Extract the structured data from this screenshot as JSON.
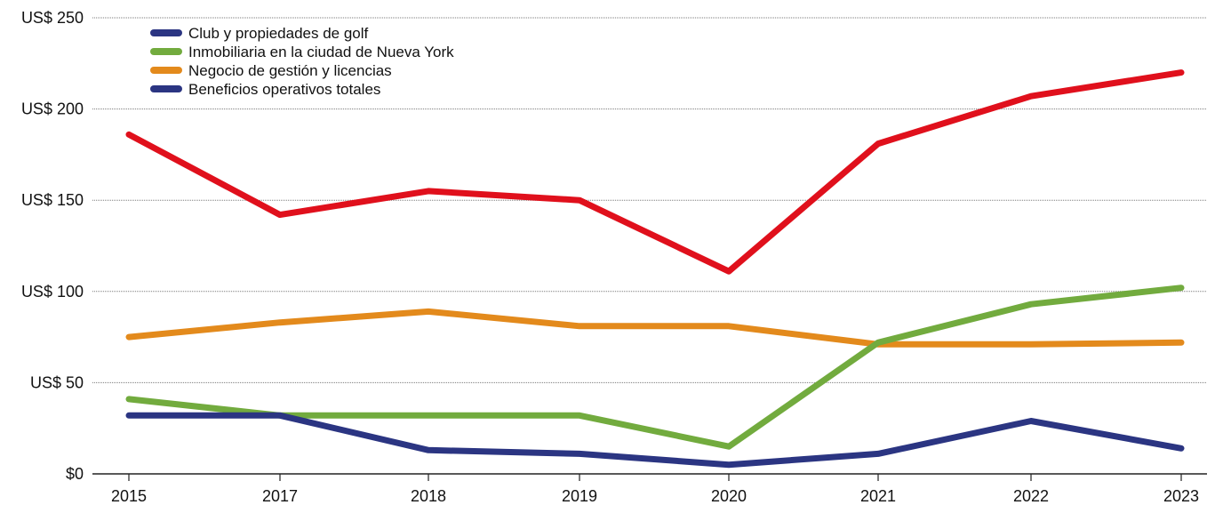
{
  "chart_data": {
    "type": "line",
    "title": "",
    "xlabel": "",
    "ylabel": "",
    "categories": [
      "2015",
      "2017",
      "2018",
      "2019",
      "2020",
      "2021",
      "2022",
      "2023"
    ],
    "y_tick_labels": [
      "$0",
      "US$ 50",
      "US$ 100",
      "US$ 150",
      "US$ 200",
      "US$ 250"
    ],
    "y_tick_values": [
      0,
      50,
      100,
      150,
      200,
      250
    ],
    "ylim": [
      0,
      250
    ],
    "grid": true,
    "legend_position": "top-left",
    "legend": [
      {
        "label": "Club y propiedades de golf",
        "color": "#2b3582"
      },
      {
        "label": "Inmobiliaria en la ciudad de Nueva York",
        "color": "#72ab3e"
      },
      {
        "label": "Negocio de gestión y licencias",
        "color": "#e38a1c"
      },
      {
        "label": "Beneficios operativos totales",
        "color": "#2b3582"
      }
    ],
    "series": [
      {
        "color": "#e0101c",
        "values": [
          186,
          142,
          155,
          150,
          111,
          181,
          207,
          220
        ]
      },
      {
        "color": "#e38a1c",
        "values": [
          75,
          83,
          89,
          81,
          81,
          71,
          71,
          72
        ]
      },
      {
        "color": "#72ab3e",
        "values": [
          41,
          32,
          32,
          32,
          15,
          72,
          93,
          102
        ]
      },
      {
        "color": "#2b3582",
        "values": [
          32,
          32,
          13,
          11,
          5,
          11,
          29,
          14
        ]
      }
    ]
  }
}
